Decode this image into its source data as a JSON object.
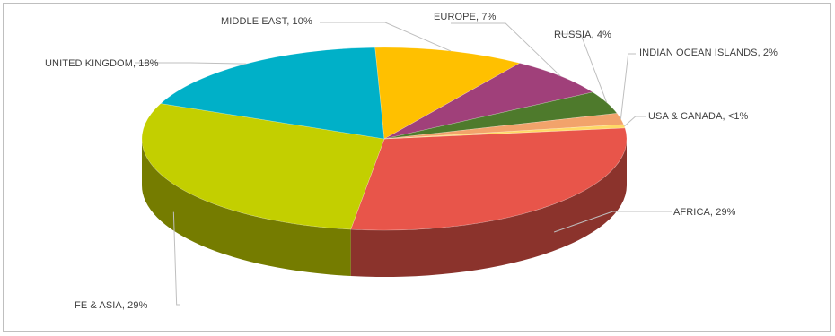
{
  "chart_data": {
    "type": "pie",
    "title": "",
    "three_d": true,
    "slices": [
      {
        "label": "AFRICA, 29%",
        "name": "AFRICA",
        "value": 29,
        "color": "#e8554a"
      },
      {
        "label": "FE & ASIA, 29%",
        "name": "FE & ASIA",
        "value": 29,
        "color": "#c3cf00"
      },
      {
        "label": "UNITED KINGDOM, 18%",
        "name": "UNITED KINGDOM",
        "value": 18,
        "color": "#00b0c8"
      },
      {
        "label": "MIDDLE EAST, 10%",
        "name": "MIDDLE EAST",
        "value": 10,
        "color": "#ffc000"
      },
      {
        "label": "EUROPE, 7%",
        "name": "EUROPE",
        "value": 7,
        "color": "#a0407a"
      },
      {
        "label": "RUSSIA, 4%",
        "name": "RUSSIA",
        "value": 4,
        "color": "#4e7a2c"
      },
      {
        "label": "INDIAN OCEAN ISLANDS, 2%",
        "name": "INDIAN OCEAN ISLANDS",
        "value": 2,
        "color": "#f2a36b"
      },
      {
        "label": "USA & CANADA, <1%",
        "name": "USA & CANADA",
        "value": 0.6,
        "color": "#ffd966"
      }
    ]
  }
}
